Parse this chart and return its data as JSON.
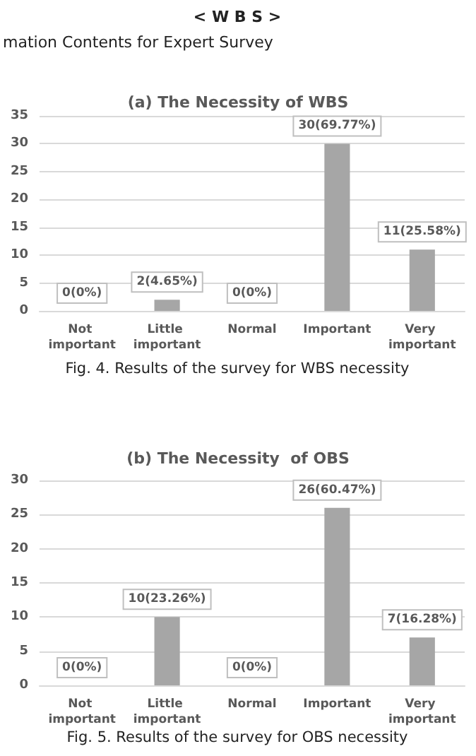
{
  "chart_data": [
    {
      "type": "bar",
      "title": "(a) The Necessity of WBS",
      "annotations": [
        "< W B S >",
        "mation Contents for Expert Survey",
        "Fig. 4. Results of the survey for WBS necessity"
      ],
      "categories": [
        "Not important",
        "Little important",
        "Normal",
        "Important",
        "Very important"
      ],
      "values": [
        0,
        2,
        0,
        30,
        11
      ],
      "value_labels": [
        "0(0%)",
        "2(4.65%)",
        "0(0%)",
        "30(69.77%)",
        "11(25.58%)"
      ],
      "color": "#a6a6a6",
      "ylim": [
        0,
        35
      ],
      "yticks": [
        0,
        5,
        10,
        15,
        20,
        25,
        30,
        35
      ],
      "grid": "y"
    },
    {
      "type": "bar",
      "title": "(b) The Necessity  of OBS",
      "annotations": [
        "Fig. 5. Results of the survey for OBS necessity"
      ],
      "categories": [
        "Not important",
        "Little important",
        "Normal",
        "Important",
        "Very important"
      ],
      "values": [
        0,
        10,
        0,
        26,
        7
      ],
      "value_labels": [
        "0(0%)",
        "10(23.26%)",
        "0(0%)",
        "26(60.47%)",
        "7(16.28%)"
      ],
      "color": "#a6a6a6",
      "ylim": [
        0,
        30
      ],
      "yticks": [
        0,
        5,
        10,
        15,
        20,
        25,
        30
      ],
      "grid": "y"
    }
  ]
}
